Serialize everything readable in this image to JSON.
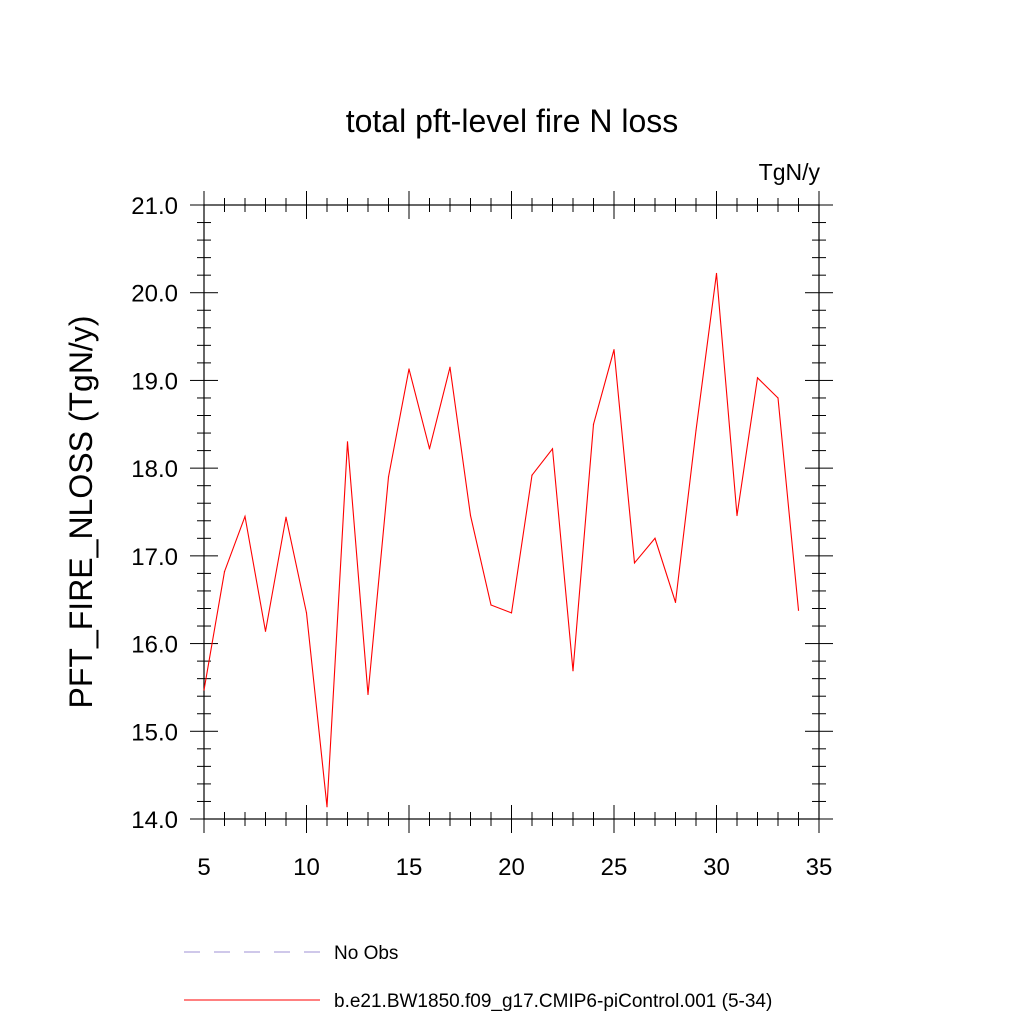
{
  "chart_data": {
    "type": "line",
    "title": "total pft-level fire N loss",
    "units_label": "TgN/y",
    "ylabel": "PFT_FIRE_NLOSS  (TgN/y)",
    "xlabel": "",
    "xlim": [
      5,
      35
    ],
    "ylim": [
      14.0,
      21.0
    ],
    "x_ticks": [
      5,
      10,
      15,
      20,
      25,
      30,
      35
    ],
    "x_tick_labels": [
      "5",
      "10",
      "15",
      "20",
      "25",
      "30",
      "35"
    ],
    "y_ticks": [
      14.0,
      15.0,
      16.0,
      17.0,
      18.0,
      19.0,
      20.0,
      21.0
    ],
    "y_tick_labels": [
      "14.0",
      "15.0",
      "16.0",
      "17.0",
      "18.0",
      "19.0",
      "20.0",
      "21.0"
    ],
    "grid": false,
    "legend_position": "bottom",
    "series": [
      {
        "name": "b.e21.BW1850.f09_g17.CMIP6-piControl.001 (5-34)",
        "color": "#ff0000",
        "line_style": "solid",
        "x": [
          5,
          6,
          7,
          8,
          9,
          10,
          11,
          12,
          13,
          14,
          15,
          16,
          17,
          18,
          19,
          20,
          21,
          22,
          23,
          24,
          25,
          26,
          27,
          28,
          29,
          30,
          31,
          32,
          33,
          34
        ],
        "y": [
          15.47,
          16.82,
          17.45,
          16.14,
          17.44,
          16.35,
          14.14,
          18.3,
          15.42,
          17.9,
          19.13,
          18.22,
          19.15,
          17.46,
          16.44,
          16.35,
          17.92,
          18.22,
          15.69,
          18.5,
          19.35,
          16.92,
          17.2,
          16.47,
          18.43,
          20.22,
          17.46,
          19.03,
          18.8,
          16.38
        ]
      }
    ],
    "legend": [
      {
        "label": "No Obs",
        "color": "#9f92d6",
        "line_style": "dashed"
      },
      {
        "label": "b.e21.BW1850.f09_g17.CMIP6-piControl.001 (5-34)",
        "color": "#ff0000",
        "line_style": "solid"
      }
    ]
  }
}
